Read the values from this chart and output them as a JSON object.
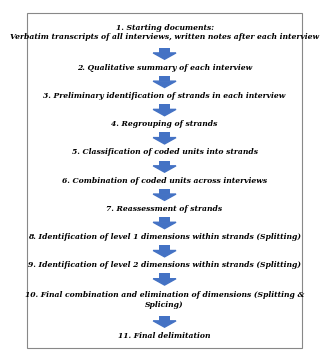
{
  "steps": [
    "1. Starting documents:\nVerbatim transcripts of all interviews, written notes after each interview",
    "2. Qualitative summary of each interview",
    "3. Preliminary identification of strands in each interview",
    "4. Regrouping of strands",
    "5. Classification of coded units into strands",
    "6. Combination of coded units across interviews",
    "7. Reassessment of strands",
    "8. Identification of level 1 dimensions within strands (Splitting)",
    "9. Identification of level 2 dimensions within strands (Splitting)",
    "10. Final combination and elimination of dimensions (Splitting &\nSplicing)",
    "11. Final delimitation"
  ],
  "arrow_color": "#4472C4",
  "text_color": "#000000",
  "border_color": "#888888",
  "bg_color": "#FFFFFF",
  "font_size": 5.5,
  "line_counts": [
    2,
    1,
    1,
    1,
    1,
    1,
    1,
    1,
    1,
    2,
    1
  ]
}
